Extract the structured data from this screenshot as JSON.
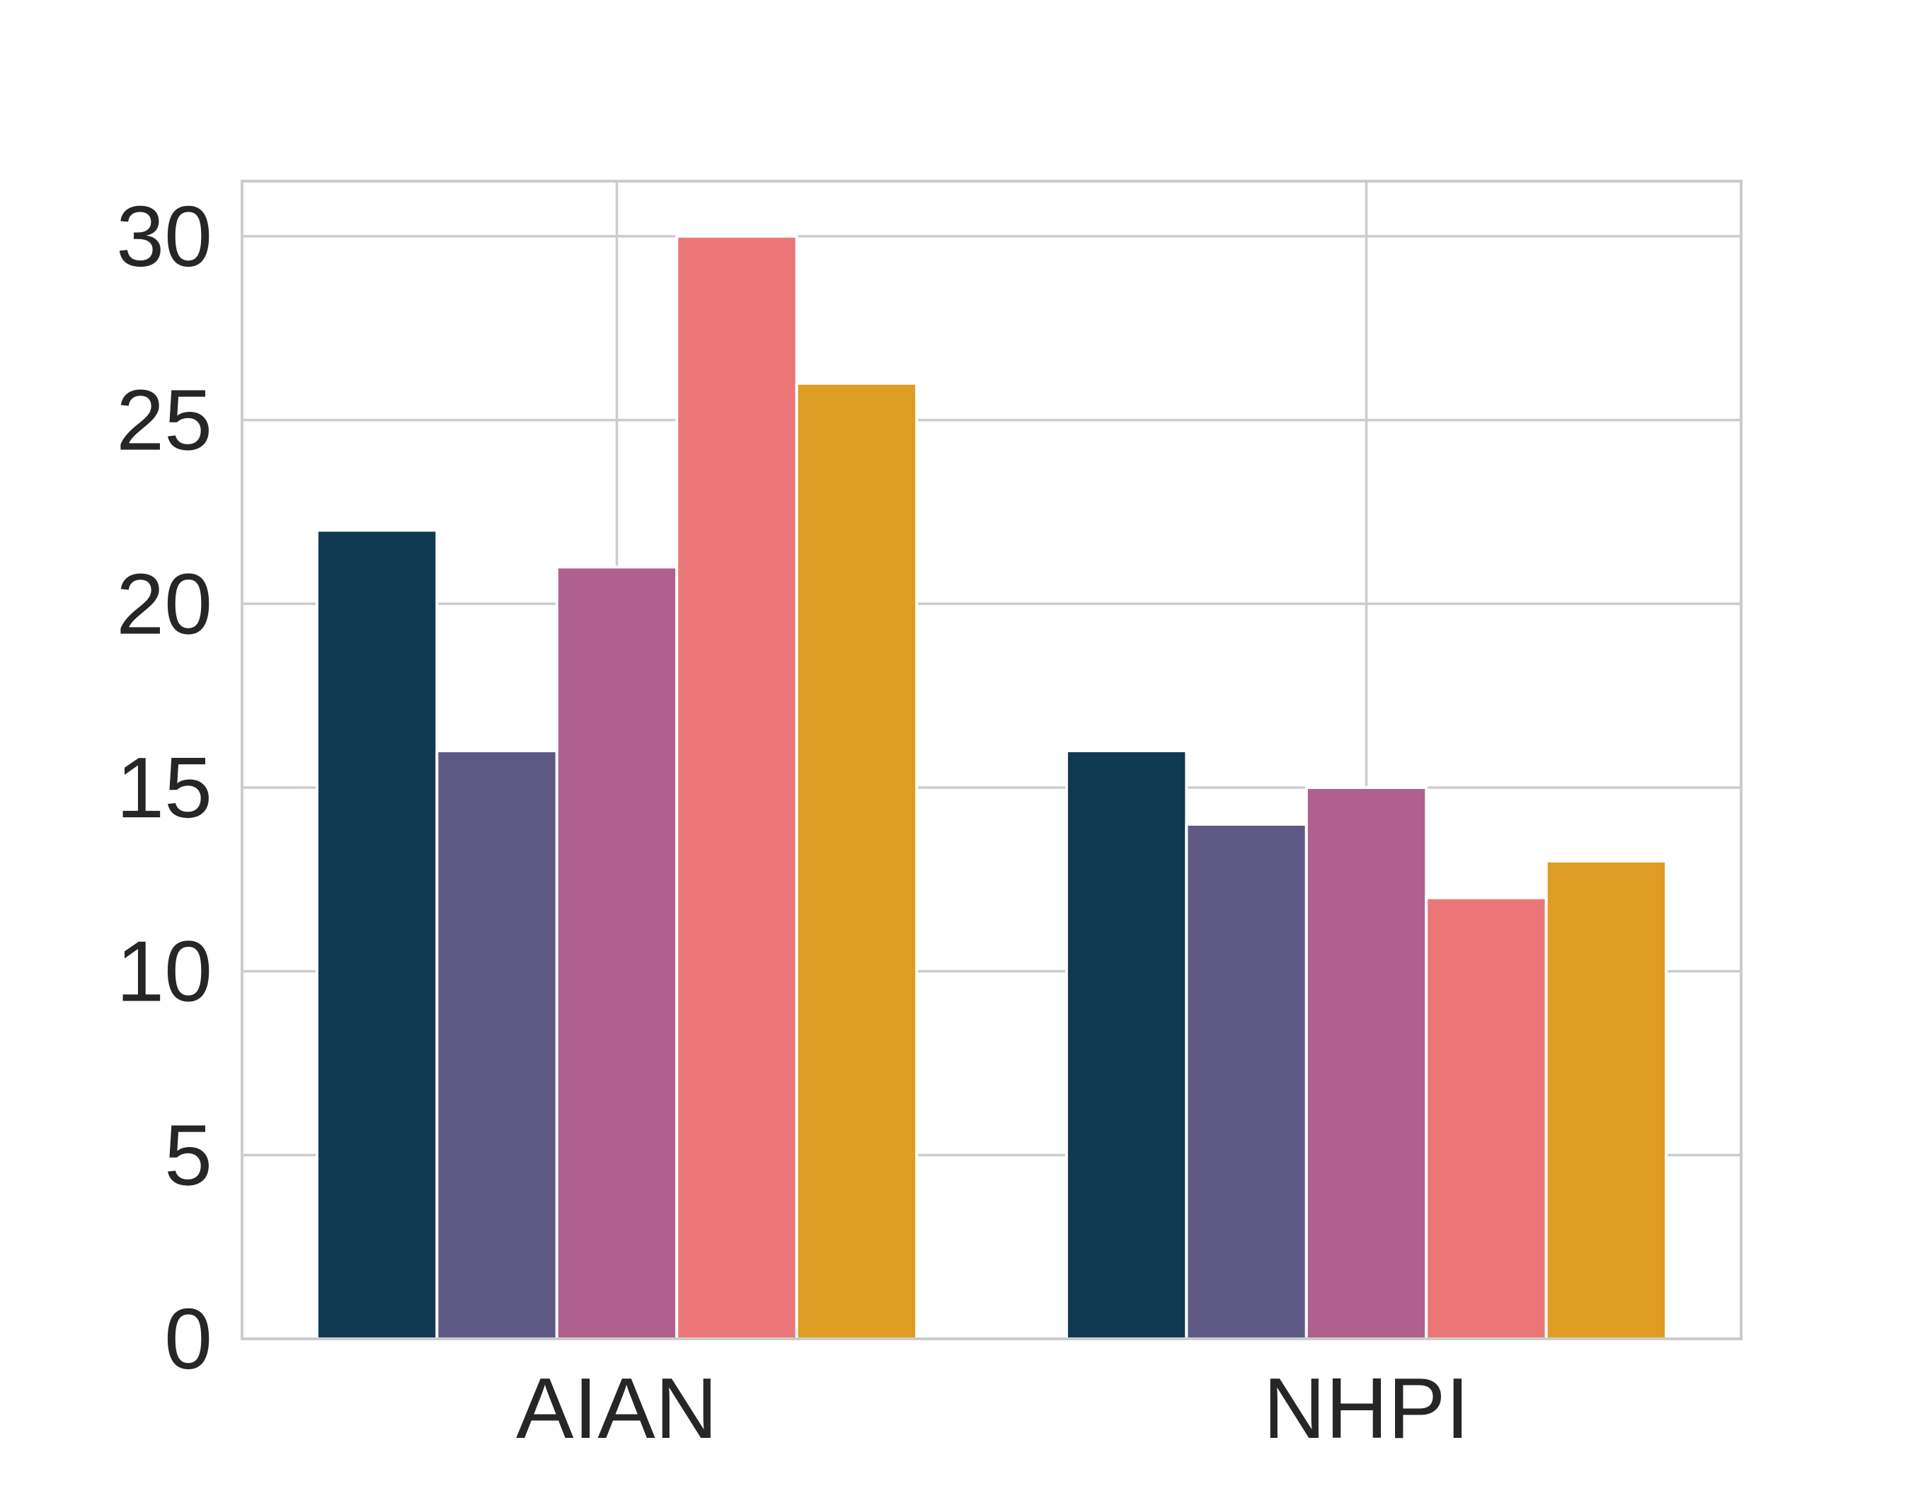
{
  "chart_data": {
    "type": "bar",
    "title": "",
    "xlabel": "",
    "ylabel": "",
    "categories": [
      "AIAN",
      "NHPI"
    ],
    "series": [
      {
        "color": "#0f3a51",
        "values": [
          22,
          16
        ]
      },
      {
        "color": "#5e5984",
        "values": [
          16,
          14
        ]
      },
      {
        "color": "#b0608d",
        "values": [
          21,
          15
        ]
      },
      {
        "color": "#eb7677",
        "values": [
          30,
          12
        ]
      },
      {
        "color": "#de9c23",
        "values": [
          26,
          13
        ]
      }
    ],
    "ylim": [
      0,
      31.5
    ],
    "yticks": [
      "0",
      "5",
      "10",
      "15",
      "20",
      "25",
      "30"
    ],
    "grid": true
  }
}
